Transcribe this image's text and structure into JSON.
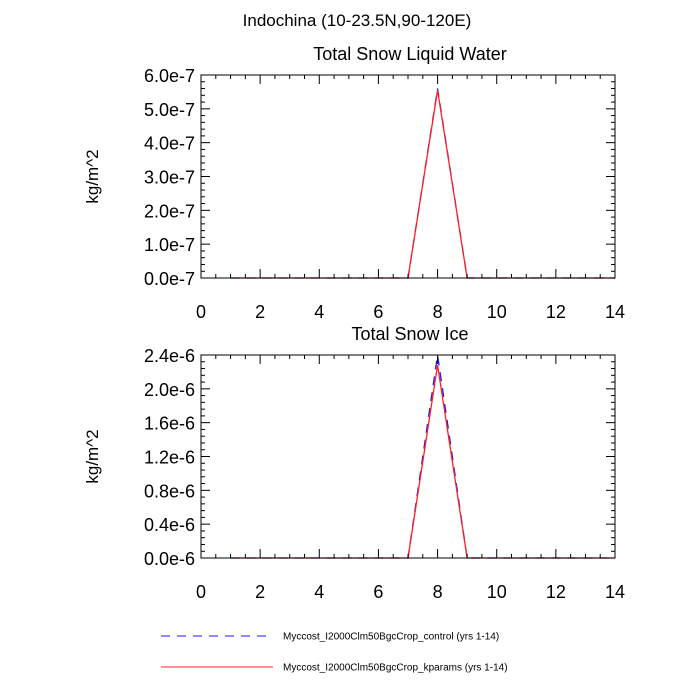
{
  "figure_title": "Indochina (10-23.5N,90-120E)",
  "chart_data": [
    {
      "type": "line",
      "title": "Total Snow Liquid Water",
      "xlabel": "",
      "ylabel": "kg/m^2",
      "xlim": [
        0,
        14
      ],
      "ylim": [
        0,
        6e-07
      ],
      "xticks": [
        0,
        2,
        4,
        6,
        8,
        10,
        12,
        14
      ],
      "xtick_labels": [
        "0",
        "2",
        "4",
        "6",
        "8",
        "10",
        "12",
        "14"
      ],
      "yticks": [
        0,
        1e-07,
        2e-07,
        3e-07,
        4e-07,
        5e-07,
        6e-07
      ],
      "ytick_labels": [
        "0.0e-7",
        "1.0e-7",
        "2.0e-7",
        "3.0e-7",
        "4.0e-7",
        "5.0e-7",
        "6.0e-7"
      ],
      "series": [
        {
          "name": "Myccost_I2000Clm50BgcCrop_control (yrs 1-14)",
          "color": "#1a1aff",
          "dash": "dashed",
          "x": [
            1,
            2,
            3,
            4,
            5,
            6,
            7,
            8,
            9,
            10,
            11,
            12,
            13,
            14
          ],
          "values": [
            0,
            0,
            0,
            0,
            0,
            0,
            0,
            5.6e-07,
            0,
            0,
            0,
            0,
            0,
            0
          ]
        },
        {
          "name": "Myccost_I2000Clm50BgcCrop_kparams (yrs 1-14)",
          "color": "#ff2020",
          "dash": "solid",
          "x": [
            1,
            2,
            3,
            4,
            5,
            6,
            7,
            8,
            9,
            10,
            11,
            12,
            13,
            14
          ],
          "values": [
            0,
            0,
            0,
            0,
            0,
            0,
            0,
            5.55e-07,
            0,
            0,
            0,
            0,
            0,
            0
          ]
        }
      ]
    },
    {
      "type": "line",
      "title": "Total Snow Ice",
      "xlabel": "",
      "ylabel": "kg/m^2",
      "xlim": [
        0,
        14
      ],
      "ylim": [
        0,
        2.4e-06
      ],
      "xticks": [
        0,
        2,
        4,
        6,
        8,
        10,
        12,
        14
      ],
      "xtick_labels": [
        "0",
        "2",
        "4",
        "6",
        "8",
        "10",
        "12",
        "14"
      ],
      "yticks": [
        0,
        4e-07,
        8e-07,
        1.2e-06,
        1.6e-06,
        2e-06,
        2.4e-06
      ],
      "ytick_labels": [
        "0.0e-6",
        "0.4e-6",
        "0.8e-6",
        "1.2e-6",
        "1.6e-6",
        "2.0e-6",
        "2.4e-6"
      ],
      "series": [
        {
          "name": "Myccost_I2000Clm50BgcCrop_control (yrs 1-14)",
          "color": "#1a1aff",
          "dash": "dashed",
          "x": [
            1,
            2,
            3,
            4,
            5,
            6,
            7,
            8,
            9,
            10,
            11,
            12,
            13,
            14
          ],
          "values": [
            0,
            0,
            0,
            0,
            0,
            0,
            0,
            2.4e-06,
            0,
            0,
            0,
            0,
            0,
            0
          ]
        },
        {
          "name": "Myccost_I2000Clm50BgcCrop_kparams (yrs 1-14)",
          "color": "#ff2020",
          "dash": "solid",
          "x": [
            1,
            2,
            3,
            4,
            5,
            6,
            7,
            8,
            9,
            10,
            11,
            12,
            13,
            14
          ],
          "values": [
            0,
            0,
            0,
            0,
            0,
            0,
            0,
            2.28e-06,
            0,
            0,
            0,
            0,
            0,
            0
          ]
        }
      ]
    }
  ],
  "legend": [
    {
      "label": "Myccost_I2000Clm50BgcCrop_control (yrs 1-14)",
      "color": "#1a1aff",
      "dash": "dashed"
    },
    {
      "label": "Myccost_I2000Clm50BgcCrop_kparams (yrs 1-14)",
      "color": "#ff2020",
      "dash": "solid"
    }
  ]
}
